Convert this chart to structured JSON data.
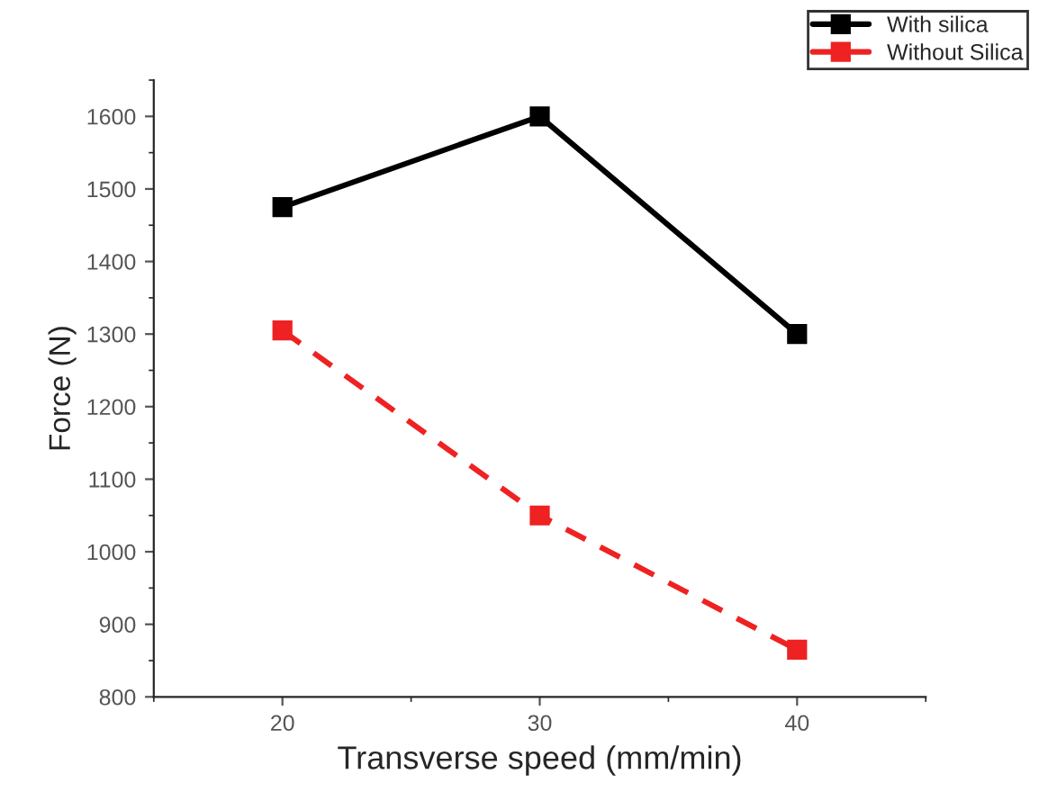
{
  "chart_data": {
    "type": "line",
    "xlabel": "Transverse speed (mm/min)",
    "ylabel": "Force (N)",
    "x": [
      20,
      30,
      40
    ],
    "series": [
      {
        "name": "With silica",
        "color": "#000000",
        "values": [
          1475,
          1600,
          1300
        ],
        "line_style": "solid"
      },
      {
        "name": "Without Silica",
        "color": "#ee2222",
        "values": [
          1305,
          1050,
          865
        ],
        "line_style": "dashed"
      }
    ],
    "xlim": [
      15,
      45
    ],
    "xticks": [
      20,
      30,
      40
    ],
    "ylim": [
      800,
      1650
    ],
    "yticks": [
      800,
      900,
      1000,
      1100,
      1200,
      1300,
      1400,
      1500,
      1600
    ],
    "marker": "square",
    "legend": "top right",
    "grid": false
  }
}
